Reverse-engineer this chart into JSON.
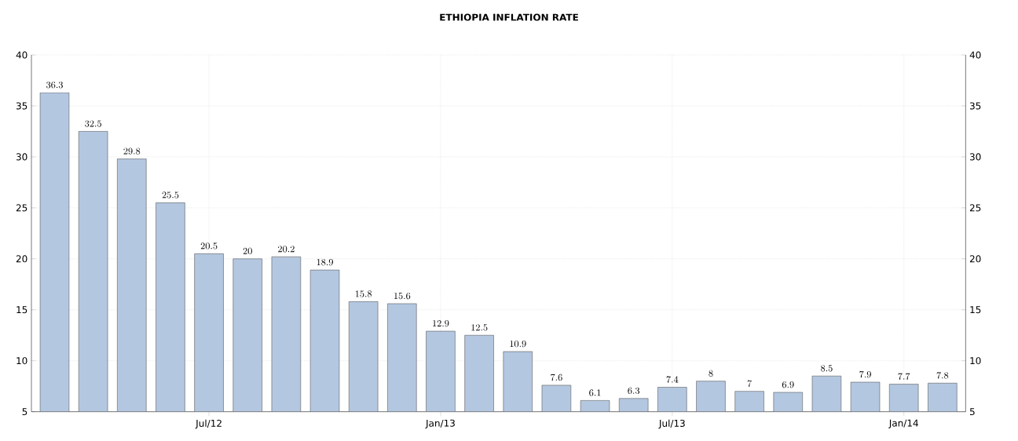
{
  "chart_data": {
    "type": "bar",
    "title": "ETHIOPIA INFLATION RATE",
    "categories": [
      null,
      null,
      null,
      null,
      "Jul/12",
      null,
      null,
      null,
      null,
      null,
      "Jan/13",
      null,
      null,
      null,
      null,
      null,
      "Jul/13",
      null,
      null,
      null,
      null,
      null,
      "Jan/14",
      null
    ],
    "values": [
      36.3,
      32.5,
      29.8,
      25.5,
      20.5,
      20,
      20.2,
      18.9,
      15.8,
      15.6,
      12.9,
      12.5,
      10.9,
      7.6,
      6.1,
      6.3,
      7.4,
      8,
      7,
      6.9,
      8.5,
      7.9,
      7.7,
      7.8
    ],
    "color": "#b4c7e0",
    "ylim": [
      5,
      40
    ],
    "yticks": [
      5,
      10,
      15,
      20,
      25,
      30,
      35,
      40
    ],
    "y2lim": [
      5,
      40
    ],
    "y2ticks": [
      5,
      10,
      15,
      20,
      25,
      30,
      35,
      40
    ],
    "grid": true,
    "data_labels": true
  }
}
